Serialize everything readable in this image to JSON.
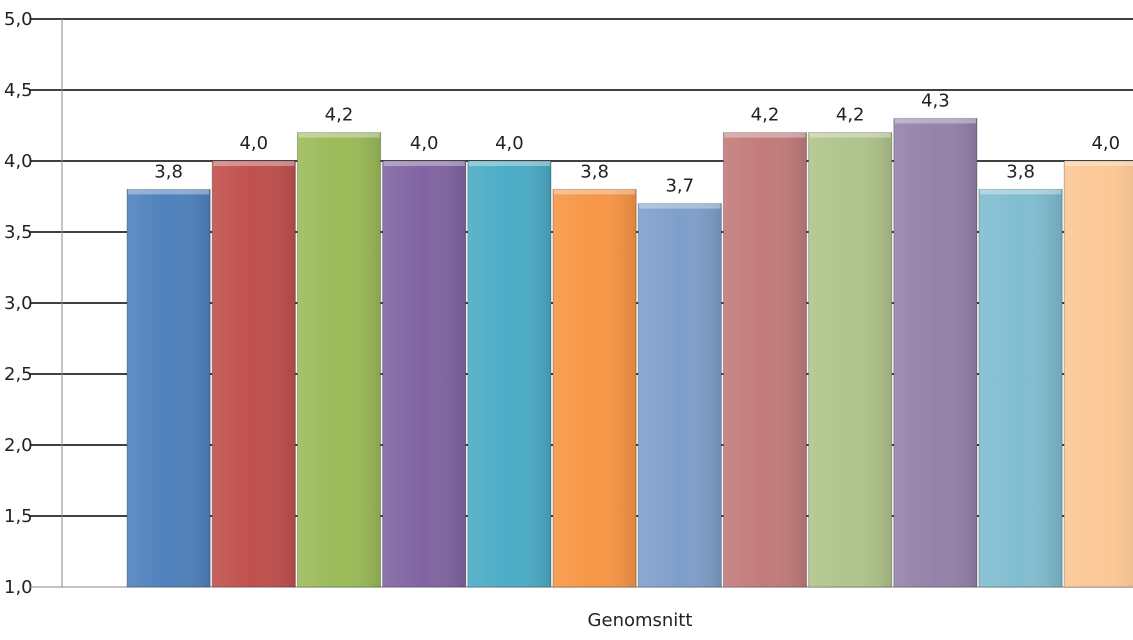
{
  "chart_data": {
    "type": "bar",
    "categories": [
      "Genomsnitt"
    ],
    "series": [
      {
        "values": [
          3.8
        ],
        "color": "#4F81BD",
        "label": "3,8"
      },
      {
        "values": [
          4.0
        ],
        "color": "#C0504D",
        "label": "4,0"
      },
      {
        "values": [
          4.2
        ],
        "color": "#9BBB59",
        "label": "4,2"
      },
      {
        "values": [
          4.0
        ],
        "color": "#8064A2",
        "label": "4,0"
      },
      {
        "values": [
          4.0
        ],
        "color": "#4BACC6",
        "label": "4,0"
      },
      {
        "values": [
          3.8
        ],
        "color": "#F79646",
        "label": "3,8"
      },
      {
        "values": [
          3.7
        ],
        "color": "#7F9FCB",
        "label": "3,7"
      },
      {
        "values": [
          4.2
        ],
        "color": "#C27B7A",
        "label": "4,2"
      },
      {
        "values": [
          4.2
        ],
        "color": "#B0C48B",
        "label": "4,2"
      },
      {
        "values": [
          4.3
        ],
        "color": "#9482AA",
        "label": "4,3"
      },
      {
        "values": [
          3.8
        ],
        "color": "#80BDD0",
        "label": "3,8"
      },
      {
        "values": [
          4.0
        ],
        "color": "#FBC795",
        "label": "4,0"
      }
    ],
    "ylim": [
      1.0,
      5.0
    ],
    "yticks": [
      1.0,
      1.5,
      2.0,
      2.5,
      3.0,
      3.5,
      4.0,
      4.5,
      5.0
    ],
    "ytick_labels": [
      "1,0",
      "1,5",
      "2,0",
      "2,5",
      "3,0",
      "3,5",
      "4,0",
      "4,5",
      "5,0"
    ],
    "xlabel": "Genomsnitt",
    "ylabel": "",
    "title": "",
    "grid": true,
    "legend": "none"
  }
}
